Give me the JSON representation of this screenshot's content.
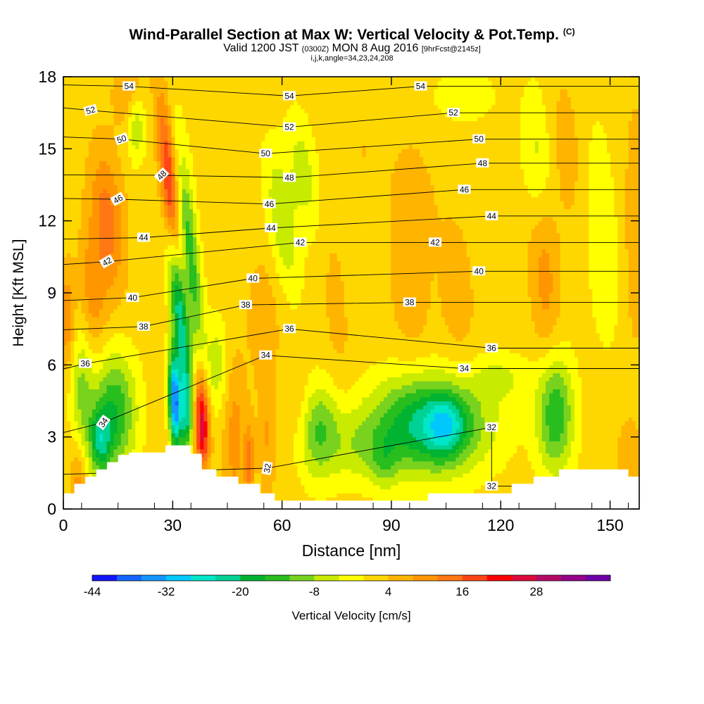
{
  "header": {
    "title": "Wind-Parallel Section at Max W: Vertical Velocity & Pot.Temp.",
    "title_mark": "(C)",
    "valid_prefix": "Valid 1200 JST",
    "valid_utc": "(0300Z)",
    "valid_date": "MON 8 Aug 2016",
    "forecast_tag": "[9hrFcst@2145z]",
    "params": "i,j,k,angle=34,23,24,208"
  },
  "chart_data": {
    "type": "heatmap",
    "xlabel": "Distance [nm]",
    "ylabel": "Height [Kft MSL]",
    "xlim": [
      0,
      158
    ],
    "ylim": [
      0,
      18
    ],
    "x_ticks": [
      0,
      30,
      60,
      90,
      120,
      150
    ],
    "y_ticks": [
      0,
      3,
      6,
      9,
      12,
      15,
      18
    ],
    "colorbar": {
      "label": "Vertical Velocity [cm/s]",
      "tick_labels": [
        "-44",
        "-32",
        "-20",
        "-8",
        "4",
        "16",
        "28"
      ],
      "tick_values": [
        -44,
        -32,
        -20,
        -8,
        4,
        16,
        28
      ],
      "min": -44,
      "step": 4,
      "colors": [
        "#1414ff",
        "#1464ff",
        "#1496ff",
        "#00c8ff",
        "#00e6c8",
        "#00d296",
        "#00b432",
        "#28be1e",
        "#78d21e",
        "#c8eb00",
        "#ffff00",
        "#ffd700",
        "#ffb400",
        "#ff9600",
        "#ff7814",
        "#ff4614",
        "#ff0000",
        "#dc0a3c",
        "#b40a64",
        "#96008c",
        "#6e00aa"
      ]
    },
    "background_value": 2,
    "updraft_downdraft_features": [
      {
        "x": 29,
        "y": 13.5,
        "value": 22,
        "sx": 2.2,
        "sy": 3.5,
        "tilt": -0.6
      },
      {
        "x": 32,
        "y": 8,
        "value": -24,
        "sx": 2.2,
        "sy": 3.5,
        "tilt": -0.6
      },
      {
        "x": 35,
        "y": 10.5,
        "value": -14,
        "sx": 2.4,
        "sy": 4.5,
        "tilt": -0.6
      },
      {
        "x": 30.5,
        "y": 4.5,
        "value": -36,
        "sx": 1.6,
        "sy": 2.0,
        "tilt": -0.2
      },
      {
        "x": 33.5,
        "y": 4.0,
        "value": -18,
        "sx": 1.8,
        "sy": 1.8,
        "tilt": -0.2
      },
      {
        "x": 38,
        "y": 4.0,
        "value": 26,
        "sx": 2.0,
        "sy": 1.8,
        "tilt": -0.2
      },
      {
        "x": 37.5,
        "y": 2.6,
        "value": 10,
        "sx": 2.4,
        "sy": 1.0,
        "tilt": 0
      },
      {
        "x": 12,
        "y": 12.0,
        "value": 14,
        "sx": 4.5,
        "sy": 3.0,
        "tilt": -0.4
      },
      {
        "x": 8,
        "y": 9.0,
        "value": 10,
        "sx": 3.5,
        "sy": 2.5,
        "tilt": -0.3
      },
      {
        "x": 1,
        "y": 8.0,
        "value": 12,
        "sx": 2.0,
        "sy": 2.0,
        "tilt": 0
      },
      {
        "x": 18,
        "y": 17.5,
        "value": 9,
        "sx": 4.0,
        "sy": 1.5,
        "tilt": 0
      },
      {
        "x": 20,
        "y": 16.0,
        "value": -8,
        "sx": 2.5,
        "sy": 1.5,
        "tilt": 0
      },
      {
        "x": 14,
        "y": 4.0,
        "value": -16,
        "sx": 6.0,
        "sy": 2.5,
        "tilt": 0
      },
      {
        "x": 10,
        "y": 2.8,
        "value": -14,
        "sx": 3.0,
        "sy": 1.4,
        "tilt": 0
      },
      {
        "x": 5,
        "y": 5.0,
        "value": -8,
        "sx": 3.0,
        "sy": 2.5,
        "tilt": 0
      },
      {
        "x": 4,
        "y": 1.2,
        "value": 10,
        "sx": 2.0,
        "sy": 1.5,
        "tilt": 0
      },
      {
        "x": 47,
        "y": 3.0,
        "value": 10,
        "sx": 3.0,
        "sy": 3.0,
        "tilt": 0
      },
      {
        "x": 51,
        "y": 2.0,
        "value": 14,
        "sx": 1.2,
        "sy": 1.5,
        "tilt": 0
      },
      {
        "x": 56,
        "y": 3.0,
        "value": 8,
        "sx": 2.5,
        "sy": 2.5,
        "tilt": 0
      },
      {
        "x": 42,
        "y": 6.0,
        "value": -6,
        "sx": 3.0,
        "sy": 2.0,
        "tilt": 0
      },
      {
        "x": 55,
        "y": 8.0,
        "value": 6,
        "sx": 5.0,
        "sy": 3.0,
        "tilt": 0
      },
      {
        "x": 60,
        "y": 12.0,
        "value": -8,
        "sx": 4.0,
        "sy": 3.0,
        "tilt": -0.8
      },
      {
        "x": 66,
        "y": 14.0,
        "value": -6,
        "sx": 4.0,
        "sy": 2.5,
        "tilt": -0.8
      },
      {
        "x": 65,
        "y": 4.0,
        "value": 6,
        "sx": 3.0,
        "sy": 2.0,
        "tilt": 0
      },
      {
        "x": 70,
        "y": 3.2,
        "value": -12,
        "sx": 6.0,
        "sy": 2.0,
        "tilt": 0
      },
      {
        "x": 75,
        "y": 8.0,
        "value": 5,
        "sx": 4.0,
        "sy": 5.0,
        "tilt": -0.5
      },
      {
        "x": 82,
        "y": 15.0,
        "value": 4,
        "sx": 6.0,
        "sy": 3.0,
        "tilt": -0.5
      },
      {
        "x": 100,
        "y": 3.5,
        "value": -22,
        "sx": 16.0,
        "sy": 2.0,
        "tilt": 0
      },
      {
        "x": 105,
        "y": 3.5,
        "value": -10,
        "sx": 5.0,
        "sy": 1.2,
        "tilt": 0
      },
      {
        "x": 88,
        "y": 2.0,
        "value": -6,
        "sx": 4.0,
        "sy": 1.2,
        "tilt": 0
      },
      {
        "x": 135,
        "y": 4.0,
        "value": -16,
        "sx": 5.0,
        "sy": 2.5,
        "tilt": 0
      },
      {
        "x": 120,
        "y": 5.5,
        "value": -4,
        "sx": 8.0,
        "sy": 1.0,
        "tilt": 0
      },
      {
        "x": 95,
        "y": 9.0,
        "value": 7,
        "sx": 5.0,
        "sy": 2.5,
        "tilt": -0.3
      },
      {
        "x": 108,
        "y": 9.0,
        "value": 6,
        "sx": 5.0,
        "sy": 3.5,
        "tilt": -0.3
      },
      {
        "x": 96,
        "y": 13.0,
        "value": 6,
        "sx": 6.0,
        "sy": 2.5,
        "tilt": -0.4
      },
      {
        "x": 132,
        "y": 10.0,
        "value": 10,
        "sx": 4.0,
        "sy": 4.0,
        "tilt": -0.3
      },
      {
        "x": 138,
        "y": 15.0,
        "value": 6,
        "sx": 4.0,
        "sy": 3.0,
        "tilt": -0.3
      },
      {
        "x": 130,
        "y": 14.5,
        "value": -6,
        "sx": 4.0,
        "sy": 3.0,
        "tilt": -0.4
      },
      {
        "x": 110,
        "y": 17.2,
        "value": -4,
        "sx": 8.0,
        "sy": 1.0,
        "tilt": 0
      },
      {
        "x": 148,
        "y": 11.0,
        "value": -4,
        "sx": 4.0,
        "sy": 5.0,
        "tilt": -0.3
      },
      {
        "x": 157,
        "y": 12.0,
        "value": 7,
        "sx": 3.0,
        "sy": 5.0,
        "tilt": 0
      },
      {
        "x": 155,
        "y": 2.0,
        "value": 6,
        "sx": 4.0,
        "sy": 2.0,
        "tilt": 0
      },
      {
        "x": 150,
        "y": 6.0,
        "value": 3,
        "sx": 6.0,
        "sy": 2.0,
        "tilt": 0
      },
      {
        "x": 80,
        "y": 2.5,
        "value": -4,
        "sx": 6.0,
        "sy": 1.5,
        "tilt": 0
      }
    ],
    "terrain": [
      [
        0,
        0.65
      ],
      [
        3,
        0.65
      ],
      [
        3,
        1.05
      ],
      [
        6,
        1.05
      ],
      [
        6,
        1.35
      ],
      [
        9,
        1.35
      ],
      [
        9,
        1.65
      ],
      [
        12,
        1.65
      ],
      [
        12,
        1.95
      ],
      [
        15,
        1.95
      ],
      [
        15,
        2.25
      ],
      [
        18,
        2.25
      ],
      [
        18,
        2.35
      ],
      [
        28,
        2.35
      ],
      [
        28,
        2.65
      ],
      [
        35,
        2.65
      ],
      [
        35,
        2.3
      ],
      [
        38,
        2.3
      ],
      [
        38,
        1.65
      ],
      [
        42,
        1.65
      ],
      [
        42,
        1.35
      ],
      [
        48,
        1.35
      ],
      [
        48,
        1.05
      ],
      [
        54,
        1.05
      ],
      [
        54,
        0.65
      ],
      [
        58,
        0.65
      ],
      [
        58,
        0.35
      ],
      [
        100,
        0.35
      ],
      [
        100,
        0.65
      ],
      [
        123,
        0.65
      ],
      [
        123,
        1.05
      ],
      [
        129,
        1.05
      ],
      [
        129,
        1.35
      ],
      [
        136,
        1.35
      ],
      [
        136,
        1.65
      ],
      [
        155,
        1.65
      ],
      [
        155,
        1.35
      ],
      [
        158,
        1.35
      ]
    ],
    "theta_contours": [
      {
        "level": 32,
        "labels": [
          {
            "x": 56,
            "y": 1.7,
            "angle": -80
          },
          {
            "x": 117.5,
            "y": 3.4
          },
          {
            "x": 117.5,
            "y": 0.95
          }
        ]
      },
      {
        "level": 34,
        "labels": [
          {
            "x": 11,
            "y": 3.6,
            "angle": -55
          },
          {
            "x": 55.5,
            "y": 6.4
          },
          {
            "x": 110,
            "y": 5.85
          }
        ]
      },
      {
        "level": 36,
        "labels": [
          {
            "x": 6,
            "y": 6.05
          },
          {
            "x": 62,
            "y": 7.5
          },
          {
            "x": 117.5,
            "y": 6.7
          }
        ]
      },
      {
        "level": 38,
        "labels": [
          {
            "x": 22,
            "y": 7.6
          },
          {
            "x": 50,
            "y": 8.5
          },
          {
            "x": 95,
            "y": 8.6
          }
        ]
      },
      {
        "level": 40,
        "labels": [
          {
            "x": 19,
            "y": 8.8
          },
          {
            "x": 52,
            "y": 9.6
          },
          {
            "x": 114,
            "y": 9.9
          }
        ]
      },
      {
        "level": 42,
        "labels": [
          {
            "x": 12,
            "y": 10.3,
            "angle": -30
          },
          {
            "x": 65,
            "y": 11.1
          },
          {
            "x": 102,
            "y": 11.1
          }
        ]
      },
      {
        "level": 44,
        "labels": [
          {
            "x": 22,
            "y": 11.3
          },
          {
            "x": 57,
            "y": 11.7
          },
          {
            "x": 117.5,
            "y": 12.2
          }
        ]
      },
      {
        "level": 46,
        "labels": [
          {
            "x": 15,
            "y": 12.9,
            "angle": -30
          },
          {
            "x": 56.5,
            "y": 12.7
          },
          {
            "x": 110,
            "y": 13.3
          }
        ]
      },
      {
        "level": 48,
        "labels": [
          {
            "x": 27,
            "y": 13.9,
            "angle": -45
          },
          {
            "x": 62,
            "y": 13.8
          },
          {
            "x": 115,
            "y": 14.4
          }
        ]
      },
      {
        "level": 50,
        "labels": [
          {
            "x": 16,
            "y": 15.4,
            "angle": -20
          },
          {
            "x": 55.5,
            "y": 14.8
          },
          {
            "x": 114,
            "y": 15.4
          }
        ]
      },
      {
        "level": 52,
        "labels": [
          {
            "x": 7.5,
            "y": 16.6,
            "angle": -15
          },
          {
            "x": 62,
            "y": 15.9
          },
          {
            "x": 107,
            "y": 16.5
          }
        ]
      },
      {
        "level": 54,
        "labels": [
          {
            "x": 18,
            "y": 17.6
          },
          {
            "x": 62,
            "y": 17.2
          },
          {
            "x": 98,
            "y": 17.6
          }
        ]
      }
    ]
  }
}
